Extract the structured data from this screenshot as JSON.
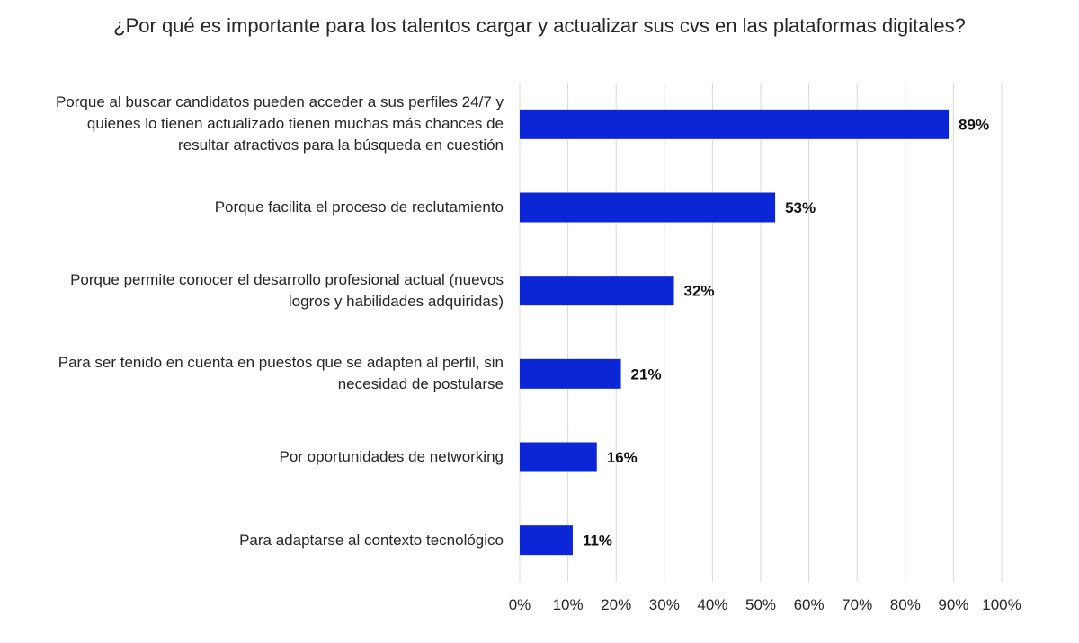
{
  "chart_data": {
    "type": "bar",
    "orientation": "horizontal",
    "title": "¿Por qué es importante para los talentos cargar y actualizar sus cvs en las plataformas digitales?",
    "categories": [
      "Porque al buscar candidatos pueden acceder a sus perfiles 24/7 y quienes lo tienen actualizado tienen muchas más chances de resultar atractivos para la búsqueda en cuestión",
      "Porque facilita el proceso de reclutamiento",
      "Porque permite conocer el desarrollo profesional actual (nuevos logros y habilidades adquiridas)",
      "Para ser tenido en cuenta en puestos que se adapten al perfil, sin necesidad de postularse",
      "Por oportunidades de networking",
      "Para adaptarse al contexto tecnológico"
    ],
    "values": [
      89,
      53,
      32,
      21,
      16,
      11
    ],
    "data_labels": [
      "89%",
      "53%",
      "32%",
      "21%",
      "16%",
      "11%"
    ],
    "xlim": [
      0,
      100
    ],
    "x_ticks": [
      "0%",
      "10%",
      "20%",
      "30%",
      "40%",
      "50%",
      "60%",
      "70%",
      "80%",
      "90%",
      "100%"
    ],
    "grid": "vertical",
    "bar_color": "#0a26d6",
    "legend": "none"
  }
}
